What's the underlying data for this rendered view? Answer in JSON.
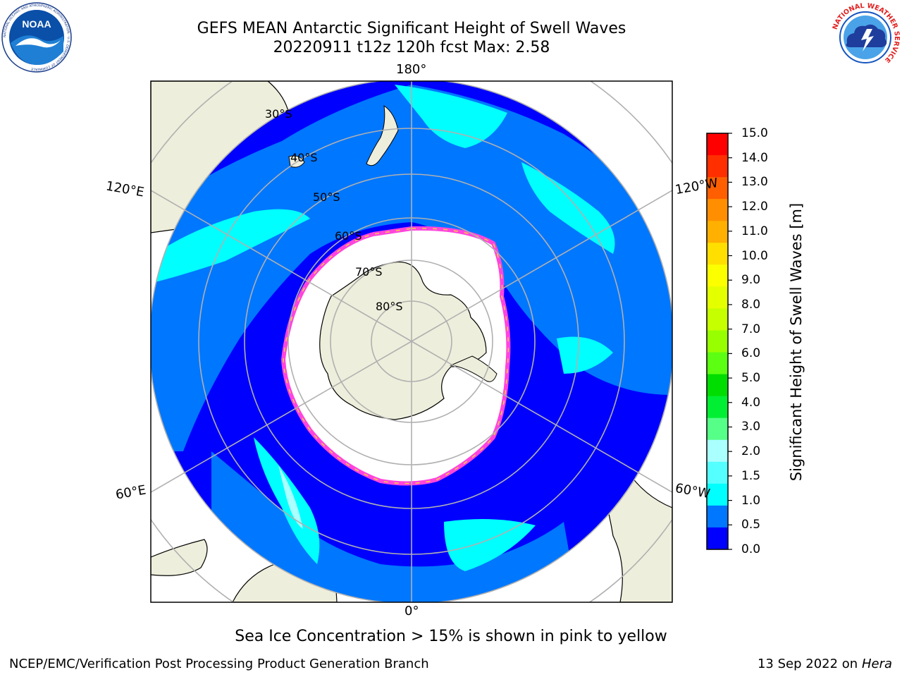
{
  "title": {
    "line1": "GEFS MEAN Antarctic Significant Height of Swell Waves",
    "line2": "20220911 t12z 120h fcst   Max: 2.58"
  },
  "map": {
    "projection": "south-polar-stereographic",
    "longitude_labels": {
      "top": "180°",
      "bottom": "0°",
      "upper_left": "120°E",
      "upper_right": "120°W",
      "lower_left": "60°E",
      "lower_right": "60°W"
    },
    "latitude_labels": [
      "30°S",
      "40°S",
      "50°S",
      "60°S",
      "70°S",
      "80°S"
    ],
    "colors": {
      "land": "#eeeedc",
      "ice_edge": "#ff44dd",
      "ice_edge_yellow": "#ffcc44",
      "grid": "#b0b0b0"
    }
  },
  "colorbar": {
    "label": "Significant Height of Swell Waves [m]",
    "ticks": [
      "15.0",
      "14.0",
      "13.0",
      "12.0",
      "11.0",
      "10.0",
      "9.0",
      "8.0",
      "7.0",
      "6.0",
      "5.0",
      "4.0",
      "3.0",
      "2.0",
      "1.5",
      "1.0",
      "0.5",
      "0.0"
    ],
    "colors_top_to_bottom": [
      "#ff0000",
      "#ff2f00",
      "#ff5f00",
      "#ff8f00",
      "#ffb000",
      "#ffdf00",
      "#fbff00",
      "#e4ff00",
      "#c6ff00",
      "#98ff00",
      "#5cff11",
      "#00dd00",
      "#00ef33",
      "#55ff88",
      "#aaffff",
      "#55ffff",
      "#00ffff",
      "#0077ff",
      "#0000ff"
    ],
    "range": [
      0,
      15
    ]
  },
  "subtitle": "Sea Ice Concentration > 15% is shown in pink to yellow",
  "footer": {
    "left": "NCEP/EMC/Verification Post Processing Product Generation Branch",
    "right_text": "13 Sep 2022 on",
    "right_italic": "Hera"
  },
  "logos": {
    "noaa": {
      "text": "NOAA",
      "ring_text": "NATIONAL OCEANIC AND ATMOSPHERIC ADMINISTRATION · U.S. DEPARTMENT OF COMMERCE"
    },
    "nws": {
      "ring_text": "NATIONAL WEATHER SERVICE"
    }
  }
}
